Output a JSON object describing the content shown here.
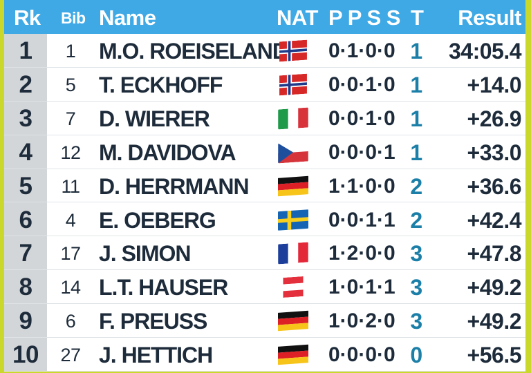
{
  "header": {
    "rank": "Rk",
    "bib": "Bib",
    "name": "Name",
    "nat": "NAT",
    "penalties": "P P S S",
    "total": "T",
    "result": "Result"
  },
  "colors": {
    "header_bg": "#3fa9e6",
    "frame": "#c9d82a",
    "penalty_total": "#1b7fa8"
  },
  "rows": [
    {
      "rank": "1",
      "bib": "1",
      "name": "M.O. ROEISELAND",
      "flag": "norway-flag-icon",
      "penalties": "0·1·0·0",
      "total": "1",
      "result": "34:05.4"
    },
    {
      "rank": "2",
      "bib": "5",
      "name": "T. ECKHOFF",
      "flag": "norway-flag-icon",
      "penalties": "0·0·1·0",
      "total": "1",
      "result": "+14.0"
    },
    {
      "rank": "3",
      "bib": "7",
      "name": "D. WIERER",
      "flag": "italy-flag-icon",
      "penalties": "0·0·1·0",
      "total": "1",
      "result": "+26.9"
    },
    {
      "rank": "4",
      "bib": "12",
      "name": "M. DAVIDOVA",
      "flag": "czech-republic-flag-icon",
      "penalties": "0·0·0·1",
      "total": "1",
      "result": "+33.0"
    },
    {
      "rank": "5",
      "bib": "11",
      "name": "D. HERRMANN",
      "flag": "germany-flag-icon",
      "penalties": "1·1·0·0",
      "total": "2",
      "result": "+36.6"
    },
    {
      "rank": "6",
      "bib": "4",
      "name": "E. OEBERG",
      "flag": "sweden-flag-icon",
      "penalties": "0·0·1·1",
      "total": "2",
      "result": "+42.4"
    },
    {
      "rank": "7",
      "bib": "17",
      "name": "J. SIMON",
      "flag": "france-flag-icon",
      "penalties": "1·2·0·0",
      "total": "3",
      "result": "+47.8"
    },
    {
      "rank": "8",
      "bib": "14",
      "name": "L.T. HAUSER",
      "flag": "austria-flag-icon",
      "penalties": "1·0·1·1",
      "total": "3",
      "result": "+49.2"
    },
    {
      "rank": "9",
      "bib": "6",
      "name": "F. PREUSS",
      "flag": "germany-flag-icon",
      "penalties": "1·0·2·0",
      "total": "3",
      "result": "+49.2"
    },
    {
      "rank": "10",
      "bib": "27",
      "name": "J. HETTICH",
      "flag": "germany-flag-icon",
      "penalties": "0·0·0·0",
      "total": "0",
      "result": "+56.5"
    }
  ]
}
